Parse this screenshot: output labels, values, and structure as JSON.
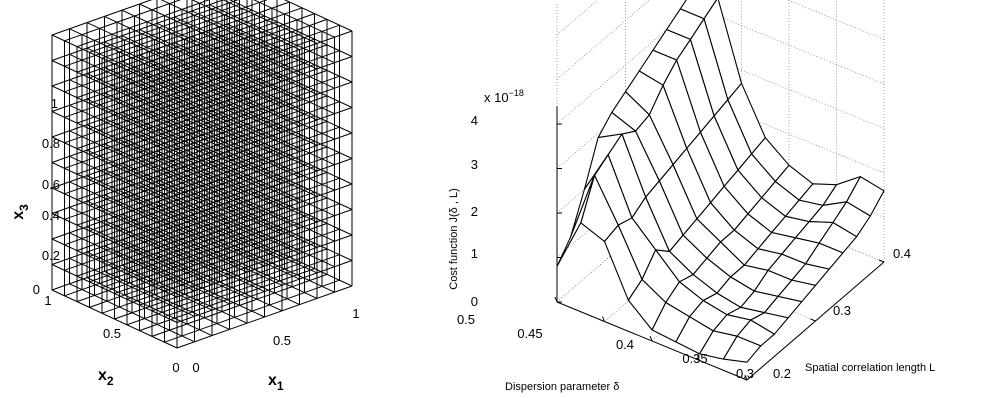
{
  "chart_data": [
    {
      "type": "wireframe-3d",
      "xlabel": "x",
      "xlabel_sub": "1",
      "ylabel": "x",
      "ylabel_sub": "2",
      "zlabel": "x",
      "zlabel_sub": "3",
      "x_ticks": [
        "0",
        "0.5",
        "1"
      ],
      "y_ticks": [
        "0",
        "0.5",
        "1"
      ],
      "z_ticks": [
        "0",
        "0.2",
        "0.4",
        "0.6",
        "0.8",
        "1"
      ],
      "xlim": [
        0,
        1
      ],
      "ylim": [
        0,
        1
      ],
      "zlim": [
        0,
        1
      ],
      "grid_divisions": 10,
      "line_color": "#000000"
    },
    {
      "type": "surface-3d",
      "zlabel": "Cost function J(δ , L)",
      "xlabel": "Dispersion parameter δ",
      "ylabel": "Spatial correlation length L",
      "z_multiplier": "x 10",
      "z_exponent": "−18",
      "x_ticks": [
        "0.5",
        "0.45",
        "0.4",
        "0.35",
        "0.3"
      ],
      "y_ticks": [
        "0.2",
        "0.3",
        "0.4"
      ],
      "z_ticks": [
        "0",
        "1",
        "2",
        "3",
        "4"
      ],
      "xlim": [
        0.3,
        0.5
      ],
      "ylim": [
        0.2,
        0.4
      ],
      "zlim": [
        0,
        4
      ],
      "delta": [
        0.5,
        0.475,
        0.45,
        0.425,
        0.4,
        0.375,
        0.35,
        0.325,
        0.3
      ],
      "L": [
        0.2,
        0.22,
        0.24,
        0.26,
        0.28,
        0.3,
        0.32,
        0.34,
        0.36,
        0.38,
        0.4
      ],
      "J_rows_by_L": [
        [
          0.8,
          2.0,
          1.8,
          0.7,
          0.25,
          0.2,
          0.15,
          0.25,
          0.4
        ],
        [
          1.2,
          2.8,
          1.9,
          0.9,
          0.6,
          0.5,
          0.4,
          0.5,
          0.5
        ],
        [
          2.0,
          3.0,
          1.8,
          1.3,
          0.8,
          0.6,
          0.5,
          0.6,
          0.5
        ],
        [
          2.9,
          3.2,
          2.0,
          1.0,
          0.7,
          0.5,
          0.4,
          0.5,
          0.6
        ],
        [
          3.2,
          3.0,
          2.1,
          1.1,
          0.8,
          0.6,
          0.5,
          0.6,
          0.7
        ],
        [
          3.4,
          3.1,
          2.2,
          1.2,
          0.9,
          0.6,
          0.7,
          0.7,
          0.8
        ],
        [
          3.6,
          3.5,
          2.3,
          1.3,
          0.9,
          0.7,
          0.8,
          0.8,
          0.9
        ],
        [
          3.8,
          3.8,
          2.4,
          1.4,
          1.0,
          0.8,
          0.9,
          1.0,
          1.0
        ],
        [
          4.0,
          4.0,
          2.5,
          1.5,
          1.1,
          0.9,
          1.0,
          1.2,
          1.1
        ],
        [
          4.2,
          4.2,
          2.6,
          1.6,
          1.2,
          1.0,
          1.1,
          1.4,
          1.3
        ],
        [
          4.4,
          4.4,
          2.7,
          1.7,
          1.3,
          1.1,
          1.3,
          1.7,
          1.6
        ]
      ],
      "grid": true,
      "line_color": "#000000"
    }
  ]
}
